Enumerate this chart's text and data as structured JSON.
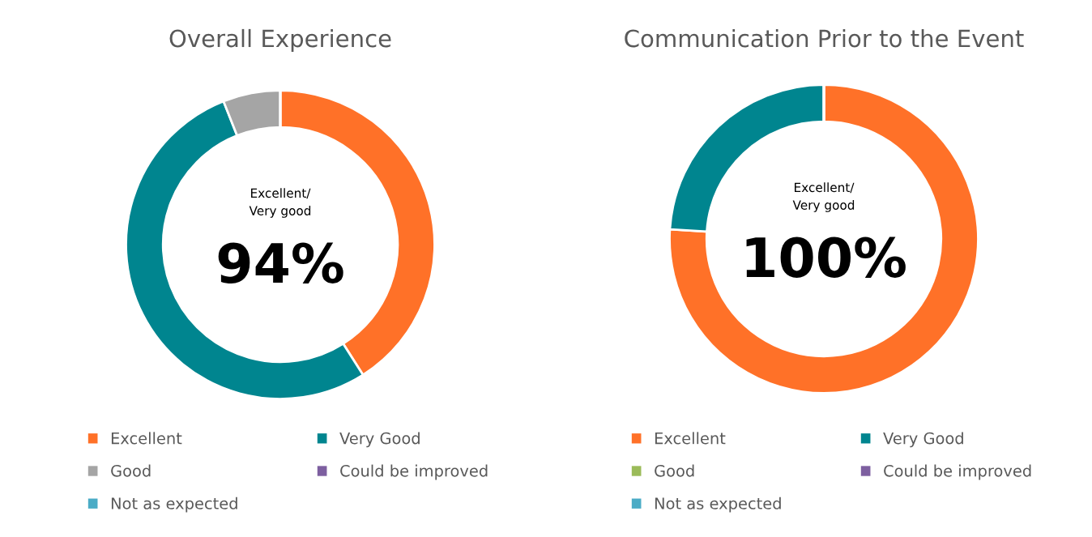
{
  "chart_data": [
    {
      "type": "donut",
      "title": "Overall Experience",
      "categories": [
        "Excellent",
        "Very Good",
        "Good",
        "Could be improved",
        "Not as expected"
      ],
      "values": [
        41,
        53,
        6,
        0,
        0
      ],
      "colors": [
        "#ff7128",
        "#00858f",
        "#a5a5a5",
        "#7d5fa0",
        "#4bacc6"
      ],
      "annotations": [
        "Excellent/\nVery good",
        "94%"
      ],
      "legend": "bottom"
    },
    {
      "type": "donut",
      "title": "Communication Prior to the Event",
      "categories": [
        "Excellent",
        "Very Good",
        "Good",
        "Could be improved",
        "Not as expected"
      ],
      "values": [
        76,
        24,
        0,
        0,
        0
      ],
      "colors": [
        "#ff7128",
        "#00858f",
        "#9bbb59",
        "#7d5fa0",
        "#4bacc6"
      ],
      "annotations": [
        "Excellent/\nVery good",
        "100%"
      ],
      "legend": "bottom"
    }
  ]
}
